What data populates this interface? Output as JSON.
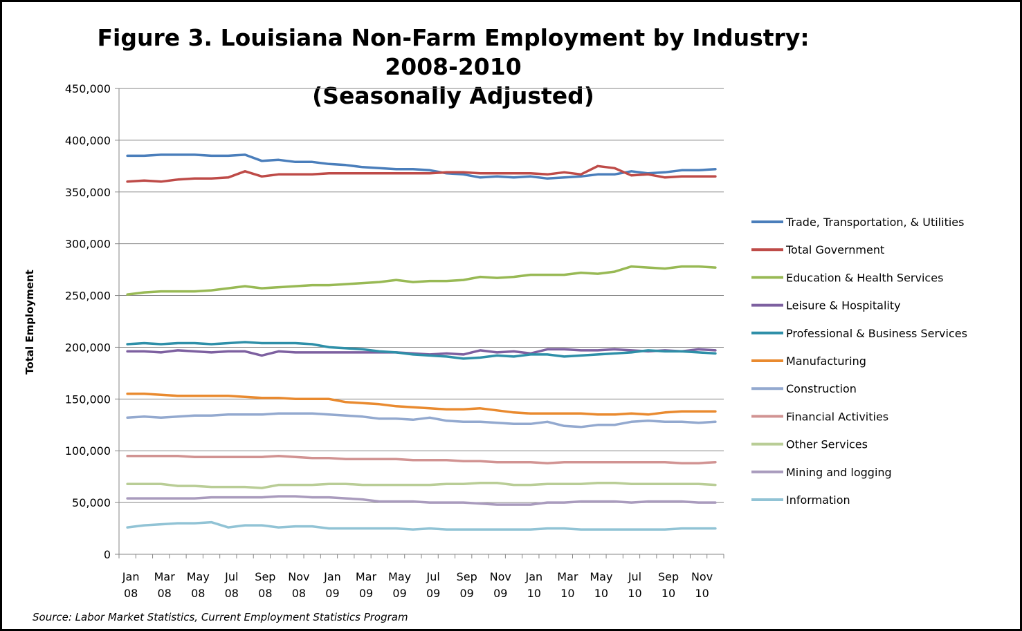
{
  "chart_data": {
    "type": "line",
    "title_line1": "Figure 3. Louisiana Non-Farm Employment by Industry: 2008-2010",
    "title_line2": "(Seasonally Adjusted)",
    "ylabel": "Total Employment",
    "xlabel": "",
    "ylim": [
      0,
      450000
    ],
    "yticks": [
      0,
      50000,
      100000,
      150000,
      200000,
      250000,
      300000,
      350000,
      400000,
      450000
    ],
    "ytick_labels": [
      "0",
      "50,000",
      "100,000",
      "150,000",
      "200,000",
      "250,000",
      "300,000",
      "350,000",
      "400,000",
      "450,000"
    ],
    "grid": true,
    "legend_position": "right",
    "x": [
      "Jan 08",
      "Feb 08",
      "Mar 08",
      "Apr 08",
      "May 08",
      "Jun 08",
      "Jul 08",
      "Aug 08",
      "Sep 08",
      "Oct 08",
      "Nov 08",
      "Dec 08",
      "Jan 09",
      "Feb 09",
      "Mar 09",
      "Apr 09",
      "May 09",
      "Jun 09",
      "Jul 09",
      "Aug 09",
      "Sep 09",
      "Oct 09",
      "Nov 09",
      "Dec 09",
      "Jan 10",
      "Feb 10",
      "Mar 10",
      "Apr 10",
      "May 10",
      "Jun 10",
      "Jul 10",
      "Aug 10",
      "Sep 10",
      "Oct 10",
      "Nov 10",
      "Dec 10"
    ],
    "xtick_labels": [
      {
        "month": "Jan",
        "year": "08"
      },
      {
        "month": "Mar",
        "year": "08"
      },
      {
        "month": "May",
        "year": "08"
      },
      {
        "month": "Jul",
        "year": "08"
      },
      {
        "month": "Sep",
        "year": "08"
      },
      {
        "month": "Nov",
        "year": "08"
      },
      {
        "month": "Jan",
        "year": "09"
      },
      {
        "month": "Mar",
        "year": "09"
      },
      {
        "month": "May",
        "year": "09"
      },
      {
        "month": "Jul",
        "year": "09"
      },
      {
        "month": "Sep",
        "year": "09"
      },
      {
        "month": "Nov",
        "year": "09"
      },
      {
        "month": "Jan",
        "year": "10"
      },
      {
        "month": "Mar",
        "year": "10"
      },
      {
        "month": "May",
        "year": "10"
      },
      {
        "month": "Jul",
        "year": "10"
      },
      {
        "month": "Sep",
        "year": "10"
      },
      {
        "month": "Nov",
        "year": "10"
      }
    ],
    "series": [
      {
        "name": "Trade, Transportation, & Utilities",
        "color": "#4A7EBB",
        "values": [
          385000,
          385000,
          386000,
          386000,
          386000,
          385000,
          385000,
          386000,
          380000,
          381000,
          379000,
          379000,
          377000,
          376000,
          374000,
          373000,
          372000,
          372000,
          371000,
          368000,
          367000,
          364000,
          365000,
          364000,
          365000,
          363000,
          364000,
          365000,
          367000,
          367000,
          370000,
          368000,
          369000,
          371000,
          371000,
          372000
        ]
      },
      {
        "name": "Total Government",
        "color": "#BE4B48",
        "values": [
          360000,
          361000,
          360000,
          362000,
          363000,
          363000,
          364000,
          370000,
          365000,
          367000,
          367000,
          367000,
          368000,
          368000,
          368000,
          368000,
          368000,
          368000,
          368000,
          369000,
          369000,
          368000,
          368000,
          368000,
          368000,
          367000,
          369000,
          367000,
          375000,
          373000,
          366000,
          367000,
          364000,
          365000,
          365000,
          365000
        ]
      },
      {
        "name": "Education & Health Services",
        "color": "#98B954",
        "values": [
          251000,
          253000,
          254000,
          254000,
          254000,
          255000,
          257000,
          259000,
          257000,
          258000,
          259000,
          260000,
          260000,
          261000,
          262000,
          263000,
          265000,
          263000,
          264000,
          264000,
          265000,
          268000,
          267000,
          268000,
          270000,
          270000,
          270000,
          272000,
          271000,
          273000,
          278000,
          277000,
          276000,
          278000,
          278000,
          277000
        ]
      },
      {
        "name": "Leisure & Hospitality",
        "color": "#7D60A0",
        "values": [
          196000,
          196000,
          195000,
          197000,
          196000,
          195000,
          196000,
          196000,
          192000,
          196000,
          195000,
          195000,
          195000,
          195000,
          195000,
          195000,
          195000,
          194000,
          193000,
          194000,
          193000,
          197000,
          195000,
          196000,
          194000,
          198000,
          198000,
          197000,
          197000,
          198000,
          197000,
          196000,
          197000,
          196000,
          198000,
          197000
        ]
      },
      {
        "name": "Professional & Business Services",
        "color": "#46AAC5",
        "values": [
          203000,
          204000,
          203000,
          204000,
          204000,
          203000,
          204000,
          205000,
          204000,
          204000,
          204000,
          203000,
          200000,
          199000,
          198000,
          196000,
          195000,
          193000,
          192000,
          191000,
          189000,
          190000,
          192000,
          191000,
          193000,
          193000,
          191000,
          192000,
          193000,
          194000,
          195000,
          197000,
          196000,
          196000,
          195000,
          194000
        ],
        "color_override": "#2E8FA8"
      },
      {
        "name": "Manufacturing",
        "color": "#F59D56",
        "values": [
          155000,
          155000,
          154000,
          153000,
          153000,
          153000,
          153000,
          152000,
          151000,
          151000,
          150000,
          150000,
          150000,
          147000,
          146000,
          145000,
          143000,
          142000,
          141000,
          140000,
          140000,
          141000,
          139000,
          137000,
          136000,
          136000,
          136000,
          136000,
          135000,
          135000,
          136000,
          135000,
          137000,
          138000,
          138000,
          138000
        ],
        "color_override": "#E98A2F"
      },
      {
        "name": "Construction",
        "color": "#93A9CF",
        "values": [
          132000,
          133000,
          132000,
          133000,
          134000,
          134000,
          135000,
          135000,
          135000,
          136000,
          136000,
          136000,
          135000,
          134000,
          133000,
          131000,
          131000,
          130000,
          132000,
          129000,
          128000,
          128000,
          127000,
          126000,
          126000,
          128000,
          124000,
          123000,
          125000,
          125000,
          128000,
          129000,
          128000,
          128000,
          127000,
          128000
        ]
      },
      {
        "name": "Financial Activities",
        "color": "#D19392",
        "values": [
          95000,
          95000,
          95000,
          95000,
          94000,
          94000,
          94000,
          94000,
          94000,
          95000,
          94000,
          93000,
          93000,
          92000,
          92000,
          92000,
          92000,
          91000,
          91000,
          91000,
          90000,
          90000,
          89000,
          89000,
          89000,
          88000,
          89000,
          89000,
          89000,
          89000,
          89000,
          89000,
          89000,
          88000,
          88000,
          89000
        ]
      },
      {
        "name": "Other Services",
        "color": "#B9CD96",
        "values": [
          68000,
          68000,
          68000,
          66000,
          66000,
          65000,
          65000,
          65000,
          64000,
          67000,
          67000,
          67000,
          68000,
          68000,
          67000,
          67000,
          67000,
          67000,
          67000,
          68000,
          68000,
          69000,
          69000,
          67000,
          67000,
          68000,
          68000,
          68000,
          69000,
          69000,
          68000,
          68000,
          68000,
          68000,
          68000,
          67000
        ]
      },
      {
        "name": "Mining and logging",
        "color": "#A99BBD",
        "values": [
          54000,
          54000,
          54000,
          54000,
          54000,
          55000,
          55000,
          55000,
          55000,
          56000,
          56000,
          55000,
          55000,
          54000,
          53000,
          51000,
          51000,
          51000,
          50000,
          50000,
          50000,
          49000,
          48000,
          48000,
          48000,
          50000,
          50000,
          51000,
          51000,
          51000,
          50000,
          51000,
          51000,
          51000,
          50000,
          50000
        ]
      },
      {
        "name": "Information",
        "color": "#91C3D5",
        "values": [
          26000,
          28000,
          29000,
          30000,
          30000,
          31000,
          26000,
          28000,
          28000,
          26000,
          27000,
          27000,
          25000,
          25000,
          25000,
          25000,
          25000,
          24000,
          25000,
          24000,
          24000,
          24000,
          24000,
          24000,
          24000,
          25000,
          25000,
          24000,
          24000,
          24000,
          24000,
          24000,
          24000,
          25000,
          25000,
          25000
        ]
      }
    ]
  },
  "source_note": "Source: Labor Market Statistics, Current Employment Statistics Program"
}
